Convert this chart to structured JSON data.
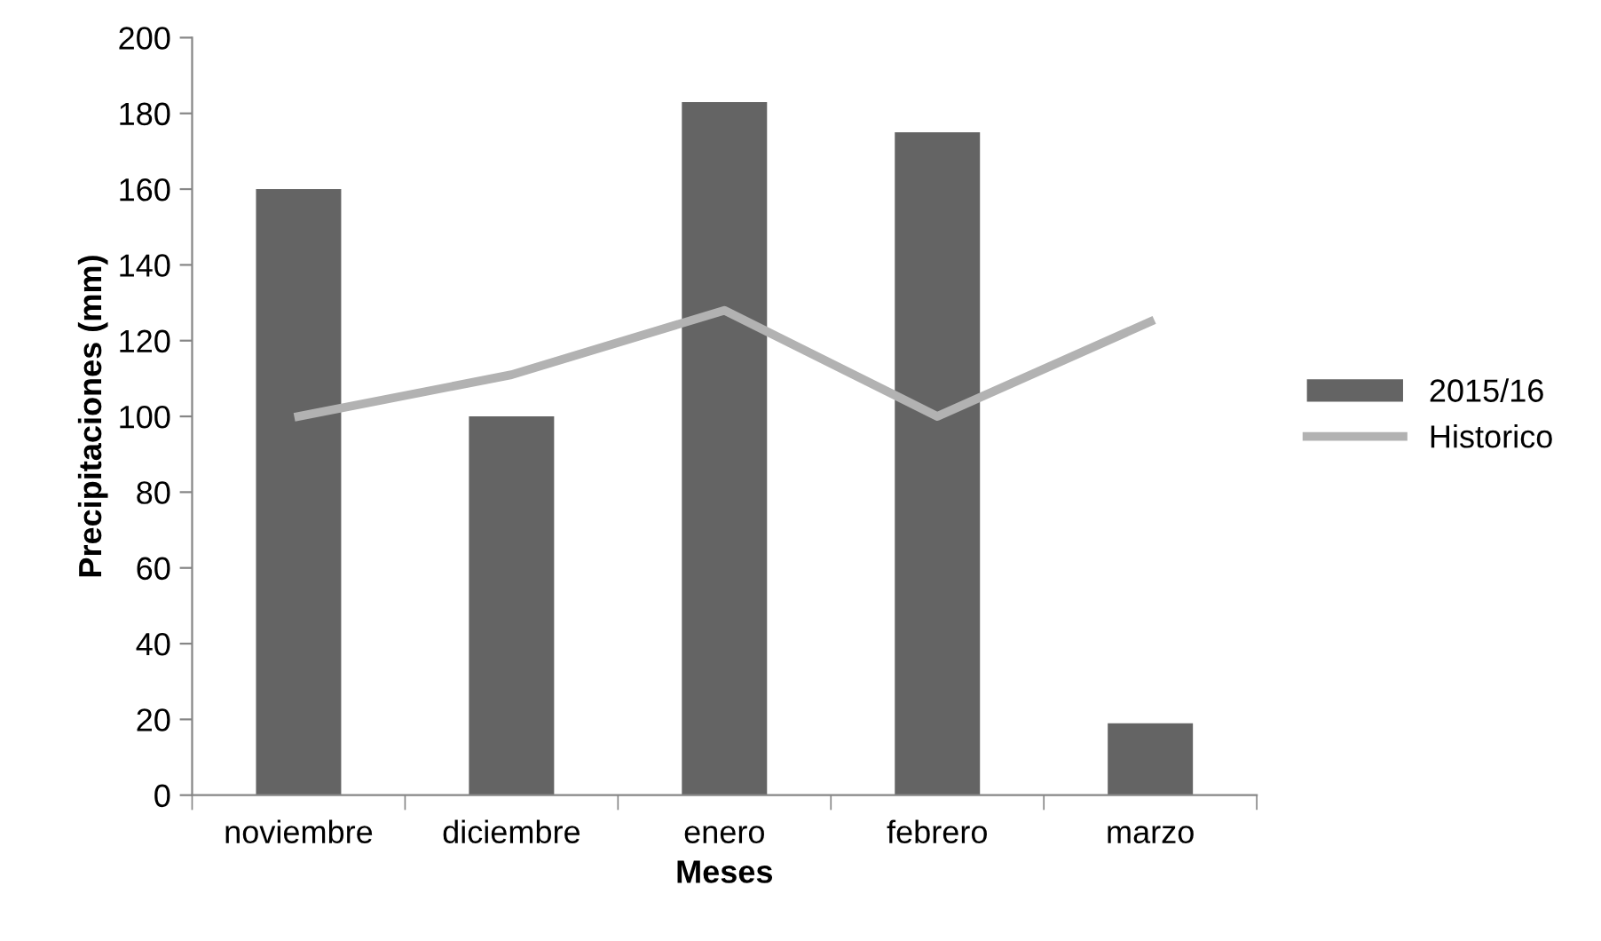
{
  "chart_data": {
    "type": "bar",
    "xlabel": "Meses",
    "ylabel": "Precipitaciones (mm)",
    "categories": [
      "noviembre",
      "diciembre",
      "enero",
      "febrero",
      "marzo"
    ],
    "series": [
      {
        "name": "2015/16",
        "color": "#646464",
        "values": [
          160,
          100,
          183,
          175,
          19
        ]
      },
      {
        "name": "Historico",
        "type": "line",
        "color": "#b2b2b2",
        "values": [
          100,
          111,
          128,
          100,
          125
        ]
      }
    ],
    "ylim": [
      0,
      200
    ],
    "yticks": [
      0,
      20,
      40,
      60,
      80,
      100,
      120,
      140,
      160,
      180,
      200
    ],
    "grid": false,
    "legend": "right",
    "marker": "none"
  }
}
